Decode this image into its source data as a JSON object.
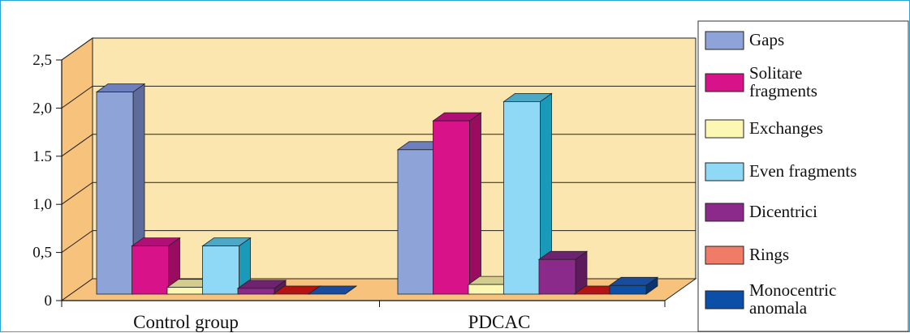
{
  "chart_data": {
    "type": "bar",
    "categories": [
      "Control group",
      "PDCAC"
    ],
    "series": [
      {
        "name": "Gaps",
        "values": [
          2.1,
          1.5
        ]
      },
      {
        "name": "Solitare fragments",
        "values": [
          0.5,
          1.8
        ]
      },
      {
        "name": "Exchanges",
        "values": [
          0.07,
          0.1
        ]
      },
      {
        "name": "Even fragments",
        "values": [
          0.5,
          2.0
        ]
      },
      {
        "name": "Dicentrici",
        "values": [
          0.06,
          0.36
        ]
      },
      {
        "name": "Rings",
        "values": [
          0.0,
          0.0
        ]
      },
      {
        "name": "Monocentric anomala",
        "values": [
          0.0,
          0.09
        ]
      }
    ],
    "y_tick_labels": [
      "0",
      "0,5",
      "1,0",
      "1.5",
      "2,0",
      "2,5"
    ],
    "ylim": [
      0,
      2.5
    ],
    "legend": "right",
    "grid": true,
    "colors": {
      "front": [
        "#8ea3d8",
        "#d8138a",
        "#fdf7b4",
        "#8fd8f6",
        "#8c2a8c",
        "#d81515",
        "#0c4fa8"
      ],
      "side": [
        "#5d6c9c",
        "#9a0c60",
        "#c7bf82",
        "#1a9ab9",
        "#5d1a5d",
        "#951010",
        "#083472"
      ],
      "top": [
        "#6e7fbe",
        "#b01076",
        "#d4cc8c",
        "#4ca8c4",
        "#6e2370",
        "#b51313",
        "#1a4c9e"
      ],
      "legend_swatch": [
        "#8ea3d8",
        "#d8138a",
        "#fdf7b4",
        "#8fd8f6",
        "#8c2a8c",
        "#f07b67",
        "#0c4fa8"
      ],
      "wall": "#fbe6b0",
      "left_wall": "#f6c27c",
      "floor": "#f6c27c"
    }
  }
}
